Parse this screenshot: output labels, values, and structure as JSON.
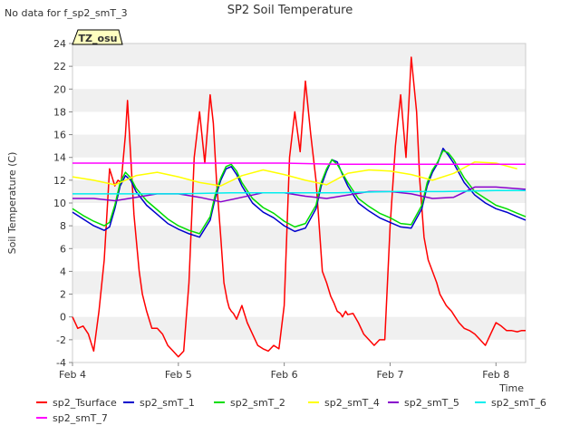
{
  "note": "No data for f_sp2_smT_3",
  "badge": "TZ_osu",
  "chart_data": {
    "type": "line",
    "title": "SP2 Soil Temperature",
    "xlabel": "Time",
    "ylabel": "Soil Temperature (C)",
    "xlim": [
      4.0,
      8.28
    ],
    "ylim": [
      -4,
      24
    ],
    "yticks": [
      -4,
      -2,
      0,
      2,
      4,
      6,
      8,
      10,
      12,
      14,
      16,
      18,
      20,
      22,
      24
    ],
    "xticks": [
      {
        "value": 4,
        "label": "Feb 4"
      },
      {
        "value": 5,
        "label": "Feb 5"
      },
      {
        "value": 6,
        "label": "Feb 6"
      },
      {
        "value": 7,
        "label": "Feb 7"
      },
      {
        "value": 8,
        "label": "Feb 8"
      }
    ],
    "grid": "horizontal bands",
    "legend_position": "bottom",
    "series": [
      {
        "name": "sp2_Tsurface",
        "color": "#ff0000",
        "x": [
          4.0,
          4.05,
          4.1,
          4.15,
          4.2,
          4.25,
          4.3,
          4.35,
          4.4,
          4.43,
          4.46,
          4.5,
          4.52,
          4.55,
          4.58,
          4.6,
          4.63,
          4.66,
          4.7,
          4.75,
          4.8,
          4.85,
          4.9,
          4.95,
          5.0,
          5.05,
          5.1,
          5.15,
          5.2,
          5.25,
          5.3,
          5.33,
          5.36,
          5.4,
          5.43,
          5.46,
          5.48,
          5.5,
          5.52,
          5.55,
          5.6,
          5.65,
          5.7,
          5.75,
          5.8,
          5.85,
          5.9,
          5.95,
          6.0,
          6.05,
          6.1,
          6.15,
          6.2,
          6.25,
          6.3,
          6.33,
          6.36,
          6.4,
          6.44,
          6.47,
          6.5,
          6.53,
          6.55,
          6.58,
          6.6,
          6.65,
          6.7,
          6.75,
          6.8,
          6.85,
          6.9,
          6.95,
          7.0,
          7.05,
          7.1,
          7.15,
          7.2,
          7.25,
          7.28,
          7.32,
          7.36,
          7.4,
          7.44,
          7.47,
          7.5,
          7.53,
          7.55,
          7.58,
          7.6,
          7.65,
          7.7,
          7.75,
          7.8,
          7.85,
          7.9,
          7.95,
          8.0,
          8.05,
          8.1,
          8.15,
          8.2,
          8.24,
          8.28
        ],
        "y": [
          0,
          -1,
          -0.8,
          -1.5,
          -3,
          0.5,
          5,
          13,
          11.5,
          12,
          11.8,
          16,
          19,
          14,
          9,
          7,
          4,
          2,
          0.5,
          -1,
          -1,
          -1.5,
          -2.5,
          -3,
          -3.5,
          -3,
          3,
          14,
          18,
          13.5,
          19.5,
          17,
          12,
          7,
          3,
          1.5,
          0.8,
          0.5,
          0.3,
          -0.2,
          1,
          -0.5,
          -1.5,
          -2.5,
          -2.8,
          -3,
          -2.5,
          -2.8,
          1,
          14,
          18,
          14.5,
          20.7,
          16,
          12,
          8,
          4,
          3,
          1.8,
          1.2,
          0.5,
          0.3,
          0,
          0.5,
          0.2,
          0.3,
          -0.5,
          -1.5,
          -2,
          -2.5,
          -2,
          -2,
          8,
          15,
          19.5,
          14,
          22.8,
          18,
          12,
          7,
          5,
          4,
          3,
          2,
          1.5,
          1,
          0.8,
          0.5,
          0.2,
          -0.5,
          -1,
          -1.2,
          -1.5,
          -2,
          -2.5,
          -1.5,
          -0.5,
          -0.8,
          -1.2,
          -1.2,
          -1.3,
          -1.2,
          -1.2
        ]
      },
      {
        "name": "sp2_smT_1",
        "color": "#0000cc",
        "x": [
          4.0,
          4.1,
          4.2,
          4.3,
          4.35,
          4.4,
          4.45,
          4.5,
          4.55,
          4.6,
          4.7,
          4.8,
          4.9,
          5.0,
          5.1,
          5.2,
          5.3,
          5.35,
          5.4,
          5.45,
          5.5,
          5.55,
          5.6,
          5.7,
          5.8,
          5.9,
          6.0,
          6.1,
          6.2,
          6.3,
          6.35,
          6.4,
          6.45,
          6.5,
          6.55,
          6.6,
          6.7,
          6.8,
          6.9,
          7.0,
          7.1,
          7.2,
          7.3,
          7.35,
          7.4,
          7.45,
          7.5,
          7.55,
          7.6,
          7.7,
          7.8,
          7.9,
          8.0,
          8.1,
          8.2,
          8.28
        ],
        "y": [
          9.2,
          8.6,
          8.0,
          7.6,
          7.9,
          9.5,
          11.5,
          12.4,
          12.0,
          11.0,
          9.8,
          9.0,
          8.2,
          7.7,
          7.3,
          7.0,
          8.5,
          10.5,
          12.0,
          13.0,
          13.2,
          12.5,
          11.5,
          10.0,
          9.2,
          8.7,
          8.0,
          7.5,
          7.8,
          9.5,
          11.5,
          12.8,
          13.8,
          13.6,
          12.5,
          11.5,
          10.0,
          9.3,
          8.7,
          8.3,
          7.9,
          7.8,
          9.5,
          11.5,
          12.7,
          13.5,
          14.8,
          14.2,
          13.5,
          11.8,
          10.7,
          10.0,
          9.5,
          9.2,
          8.8,
          8.5
        ]
      },
      {
        "name": "sp2_smT_2",
        "color": "#00dd00",
        "x": [
          4.0,
          4.1,
          4.2,
          4.3,
          4.35,
          4.4,
          4.45,
          4.5,
          4.55,
          4.6,
          4.7,
          4.8,
          4.9,
          5.0,
          5.1,
          5.2,
          5.3,
          5.35,
          5.4,
          5.45,
          5.5,
          5.55,
          5.6,
          5.7,
          5.8,
          5.9,
          6.0,
          6.1,
          6.2,
          6.3,
          6.35,
          6.4,
          6.45,
          6.5,
          6.55,
          6.6,
          6.7,
          6.8,
          6.9,
          7.0,
          7.1,
          7.2,
          7.3,
          7.35,
          7.4,
          7.45,
          7.5,
          7.55,
          7.6,
          7.7,
          7.8,
          7.9,
          8.0,
          8.1,
          8.2,
          8.28
        ],
        "y": [
          9.5,
          8.9,
          8.4,
          8.0,
          8.3,
          9.8,
          11.8,
          12.7,
          12.2,
          11.3,
          10.2,
          9.4,
          8.6,
          8.0,
          7.6,
          7.3,
          8.8,
          10.8,
          12.2,
          13.2,
          13.4,
          12.8,
          11.8,
          10.4,
          9.6,
          9.1,
          8.4,
          7.9,
          8.2,
          9.8,
          11.8,
          13.0,
          13.8,
          13.4,
          12.6,
          11.8,
          10.4,
          9.7,
          9.1,
          8.7,
          8.2,
          8.1,
          9.8,
          11.8,
          12.9,
          13.6,
          14.6,
          14.4,
          13.8,
          12.2,
          11.0,
          10.4,
          9.8,
          9.5,
          9.1,
          8.8
        ]
      },
      {
        "name": "sp2_smT_4",
        "color": "#ffff00",
        "x": [
          4.0,
          4.2,
          4.4,
          4.6,
          4.8,
          5.0,
          5.2,
          5.4,
          5.6,
          5.8,
          6.0,
          6.2,
          6.4,
          6.6,
          6.8,
          7.0,
          7.2,
          7.4,
          7.6,
          7.8,
          8.0,
          8.2
        ],
        "y": [
          12.3,
          12.0,
          11.6,
          12.4,
          12.7,
          12.3,
          11.8,
          11.5,
          12.4,
          12.9,
          12.5,
          12.0,
          11.6,
          12.6,
          12.9,
          12.8,
          12.5,
          12.0,
          12.6,
          13.6,
          13.5,
          13.0
        ]
      },
      {
        "name": "sp2_smT_5",
        "color": "#8800cc",
        "x": [
          4.0,
          4.2,
          4.4,
          4.6,
          4.8,
          5.0,
          5.2,
          5.4,
          5.6,
          5.8,
          6.0,
          6.2,
          6.4,
          6.6,
          6.8,
          7.0,
          7.2,
          7.4,
          7.6,
          7.8,
          8.0,
          8.28
        ],
        "y": [
          10.4,
          10.4,
          10.2,
          10.5,
          10.8,
          10.8,
          10.5,
          10.1,
          10.5,
          10.9,
          10.9,
          10.6,
          10.4,
          10.7,
          11.0,
          11.0,
          10.8,
          10.4,
          10.5,
          11.4,
          11.4,
          11.2
        ]
      },
      {
        "name": "sp2_smT_6",
        "color": "#00eeee",
        "x": [
          4.0,
          4.5,
          5.0,
          5.5,
          6.0,
          6.5,
          7.0,
          7.5,
          8.0,
          8.28
        ],
        "y": [
          10.8,
          10.8,
          10.8,
          10.9,
          10.9,
          10.9,
          11.0,
          11.0,
          11.1,
          11.1
        ]
      },
      {
        "name": "sp2_smT_7",
        "color": "#ff00ff",
        "x": [
          4.0,
          4.5,
          5.0,
          5.5,
          6.0,
          6.5,
          7.0,
          7.5,
          8.0,
          8.28
        ],
        "y": [
          13.5,
          13.5,
          13.5,
          13.5,
          13.5,
          13.4,
          13.4,
          13.4,
          13.4,
          13.4
        ]
      }
    ]
  }
}
